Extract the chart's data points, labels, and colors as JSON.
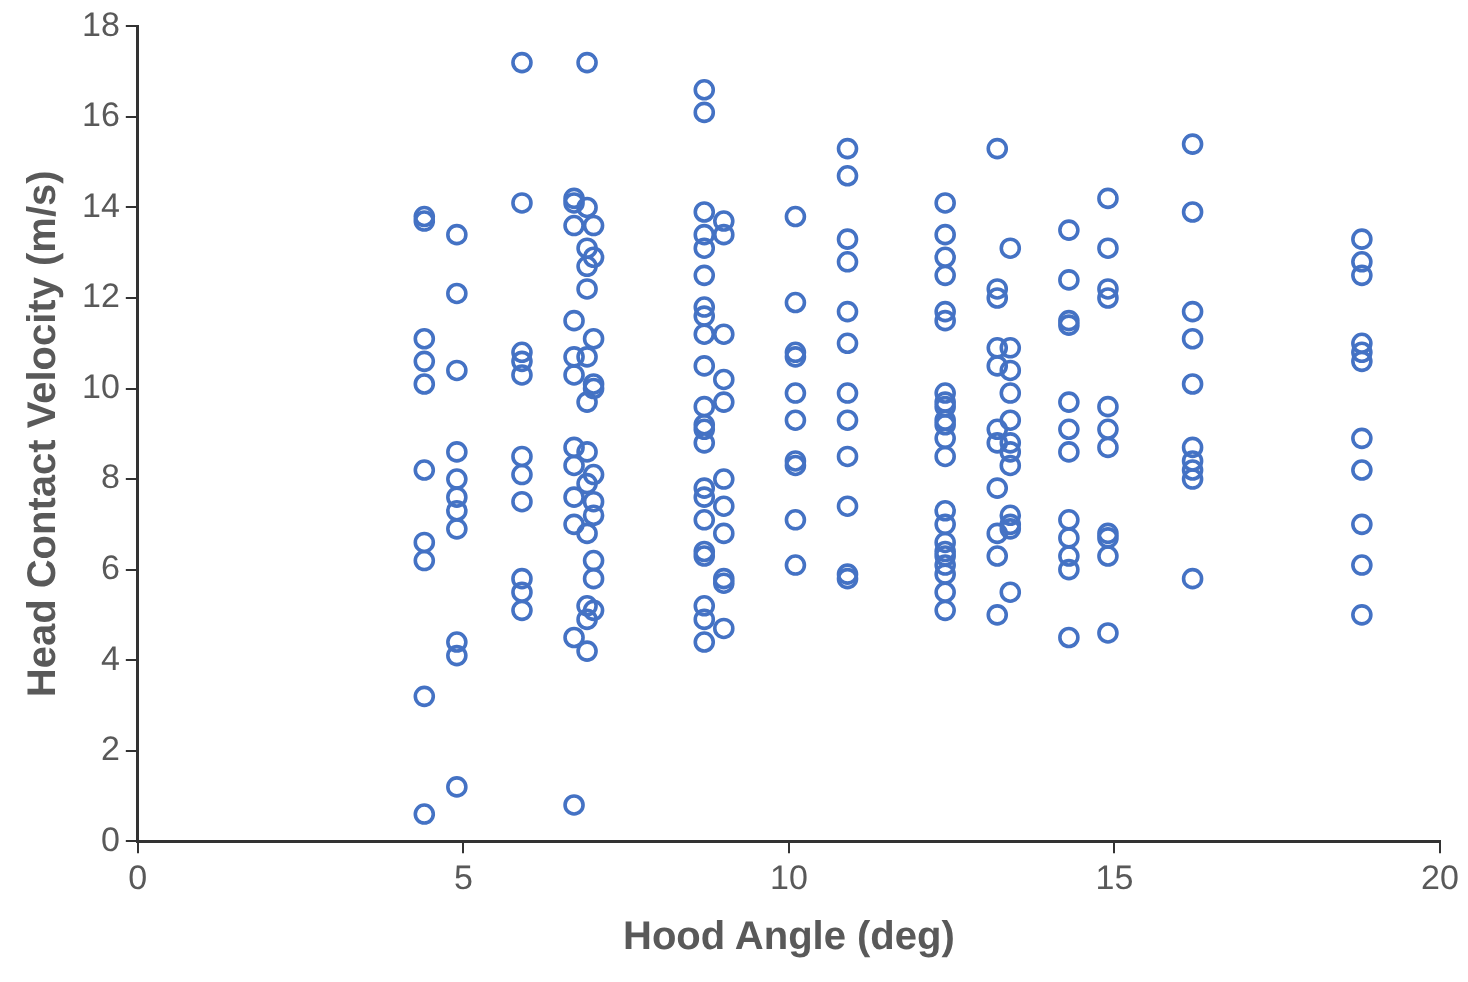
{
  "chart_data": {
    "type": "scatter",
    "xlabel": "Hood Angle (deg)",
    "ylabel": "Head Contact Velocity (m/s)",
    "marker": "circle",
    "color": "#4472c4",
    "grid": false,
    "legend": false,
    "xlim": [
      0,
      20
    ],
    "xticks": [
      0,
      5,
      10,
      15,
      20
    ],
    "ylim": [
      0,
      18
    ],
    "yticks": [
      0,
      2,
      4,
      6,
      8,
      10,
      12,
      14,
      16,
      18
    ],
    "x": [
      4.4,
      4.4,
      4.4,
      4.4,
      4.4,
      4.4,
      4.4,
      4.4,
      4.4,
      4.4,
      4.9,
      4.9,
      4.9,
      4.9,
      4.9,
      4.9,
      4.9,
      4.9,
      4.9,
      4.9,
      4.9,
      5.9,
      5.9,
      5.9,
      5.9,
      5.9,
      5.9,
      5.9,
      5.9,
      5.9,
      5.9,
      5.9,
      6.7,
      6.7,
      6.7,
      6.7,
      6.7,
      6.7,
      6.7,
      6.7,
      6.7,
      6.7,
      6.7,
      6.7,
      6.9,
      6.9,
      6.9,
      6.9,
      6.9,
      6.9,
      6.9,
      6.9,
      6.9,
      6.9,
      6.9,
      6.9,
      6.9,
      7.0,
      7.0,
      7.0,
      7.0,
      7.0,
      7.0,
      7.0,
      7.0,
      7.0,
      7.0,
      7.0,
      8.7,
      8.7,
      8.7,
      8.7,
      8.7,
      8.7,
      8.7,
      8.7,
      8.7,
      8.7,
      8.7,
      8.7,
      8.7,
      8.7,
      8.7,
      8.7,
      8.7,
      8.7,
      8.7,
      8.7,
      8.7,
      8.7,
      9.0,
      9.0,
      9.0,
      9.0,
      9.0,
      9.0,
      9.0,
      9.0,
      9.0,
      9.0,
      9.0,
      10.1,
      10.1,
      10.1,
      10.1,
      10.1,
      10.1,
      10.1,
      10.1,
      10.1,
      10.1,
      10.9,
      10.9,
      10.9,
      10.9,
      10.9,
      10.9,
      10.9,
      10.9,
      10.9,
      10.9,
      10.9,
      10.9,
      12.4,
      12.4,
      12.4,
      12.4,
      12.4,
      12.4,
      12.4,
      12.4,
      12.4,
      12.4,
      12.4,
      12.4,
      12.4,
      12.4,
      12.4,
      12.4,
      12.4,
      12.4,
      12.4,
      12.4,
      12.4,
      12.4,
      13.2,
      13.2,
      13.2,
      13.2,
      13.2,
      13.2,
      13.2,
      13.2,
      13.2,
      13.2,
      13.2,
      13.4,
      13.4,
      13.4,
      13.4,
      13.4,
      13.4,
      13.4,
      13.4,
      13.4,
      13.4,
      13.4,
      13.4,
      14.3,
      14.3,
      14.3,
      14.3,
      14.3,
      14.3,
      14.3,
      14.3,
      14.3,
      14.3,
      14.3,
      14.3,
      14.9,
      14.9,
      14.9,
      14.9,
      14.9,
      14.9,
      14.9,
      14.9,
      14.9,
      14.9,
      14.9,
      16.2,
      16.2,
      16.2,
      16.2,
      16.2,
      16.2,
      16.2,
      16.2,
      16.2,
      16.2,
      18.8,
      18.8,
      18.8,
      18.8,
      18.8,
      18.8,
      18.8,
      18.8,
      18.8,
      18.8,
      18.8
    ],
    "values": [
      13.8,
      13.7,
      11.1,
      10.6,
      10.1,
      8.2,
      6.6,
      6.2,
      3.2,
      0.6,
      13.4,
      12.1,
      10.4,
      8.6,
      8.0,
      7.6,
      7.3,
      6.9,
      4.4,
      4.1,
      1.2,
      17.2,
      14.1,
      10.8,
      10.6,
      10.3,
      8.5,
      8.1,
      7.5,
      5.8,
      5.5,
      5.1,
      14.2,
      14.1,
      13.6,
      11.5,
      10.7,
      10.3,
      8.7,
      8.3,
      7.6,
      7.0,
      4.5,
      0.8,
      17.2,
      14.0,
      13.1,
      12.7,
      12.2,
      10.7,
      9.7,
      8.6,
      7.9,
      6.8,
      5.2,
      4.9,
      4.2,
      13.6,
      12.9,
      11.1,
      10.1,
      10.0,
      8.1,
      7.5,
      7.2,
      6.2,
      5.8,
      5.1,
      16.6,
      16.1,
      13.9,
      13.4,
      13.1,
      12.5,
      11.8,
      11.6,
      11.2,
      10.5,
      9.6,
      9.2,
      9.1,
      8.8,
      7.8,
      7.6,
      7.1,
      6.4,
      6.3,
      5.2,
      4.9,
      4.4,
      13.7,
      13.4,
      11.2,
      10.2,
      9.7,
      8.0,
      7.4,
      6.8,
      5.8,
      5.7,
      4.7,
      13.8,
      11.9,
      10.8,
      10.7,
      9.9,
      9.3,
      8.4,
      8.3,
      7.1,
      6.1,
      15.3,
      14.7,
      13.3,
      12.8,
      11.7,
      11.0,
      9.9,
      9.3,
      8.5,
      7.4,
      5.9,
      5.8,
      14.1,
      13.4,
      12.9,
      12.5,
      11.7,
      11.5,
      9.9,
      9.7,
      9.6,
      9.3,
      9.2,
      8.9,
      8.5,
      7.3,
      7.0,
      6.6,
      6.4,
      6.3,
      6.1,
      5.9,
      5.5,
      5.1,
      15.3,
      12.2,
      12.0,
      10.9,
      10.5,
      9.1,
      8.8,
      7.8,
      6.8,
      6.3,
      5.0,
      13.1,
      10.9,
      10.4,
      9.9,
      9.3,
      8.8,
      8.6,
      8.3,
      7.2,
      7.0,
      6.9,
      5.5,
      13.5,
      12.4,
      11.5,
      11.4,
      9.7,
      9.1,
      8.6,
      7.1,
      6.7,
      6.3,
      6.0,
      4.5,
      14.2,
      13.1,
      12.2,
      12.0,
      9.6,
      9.1,
      8.7,
      6.8,
      6.7,
      6.3,
      4.6,
      15.4,
      13.9,
      11.7,
      11.1,
      10.1,
      8.7,
      8.4,
      8.2,
      8.0,
      5.8,
      13.3,
      12.8,
      12.5,
      11.0,
      10.8,
      10.6,
      8.9,
      8.2,
      7.0,
      6.1,
      5.0
    ]
  }
}
